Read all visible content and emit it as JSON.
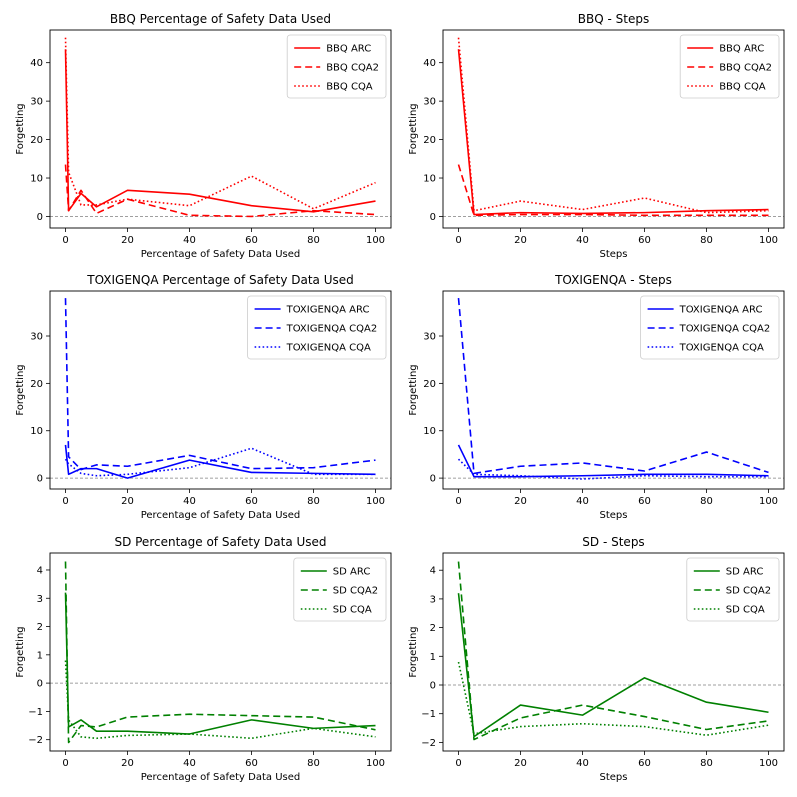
{
  "chart_data": [
    {
      "type": "line",
      "title": "BBQ Percentage of Safety Data Used",
      "xlabel": "Percentage of Safety Data Used",
      "ylabel": "Forgetting",
      "xlim": [
        -5,
        105
      ],
      "ylim": [
        -3,
        48.5
      ],
      "xticks": [
        0,
        20,
        40,
        60,
        80,
        100
      ],
      "yticks": [
        0,
        10,
        20,
        30,
        40
      ],
      "color": "#ff0000",
      "legend_position": "top-right",
      "series": [
        {
          "name": "BBQ ARC",
          "style": "solid",
          "x": [
            0,
            1,
            5,
            10,
            20,
            40,
            60,
            80,
            100
          ],
          "y": [
            43.5,
            1.5,
            6.0,
            2.5,
            6.8,
            5.8,
            2.8,
            1.2,
            4.0
          ]
        },
        {
          "name": "BBQ CQA2",
          "style": "dashed",
          "x": [
            0,
            1,
            5,
            10,
            20,
            40,
            60,
            80,
            100
          ],
          "y": [
            13.5,
            1.5,
            6.8,
            0.8,
            4.5,
            0.3,
            0.0,
            1.5,
            0.5
          ]
        },
        {
          "name": "BBQ CQA",
          "style": "dotted",
          "x": [
            0,
            1,
            5,
            10,
            20,
            40,
            60,
            80,
            100
          ],
          "y": [
            46.5,
            11.5,
            3.0,
            3.0,
            4.5,
            2.8,
            10.5,
            2.0,
            8.8
          ]
        }
      ]
    },
    {
      "type": "line",
      "title": "BBQ - Steps",
      "xlabel": "Steps",
      "ylabel": "Forgetting",
      "xlim": [
        -5,
        105
      ],
      "ylim": [
        -3,
        48.5
      ],
      "xticks": [
        0,
        20,
        40,
        60,
        80,
        100
      ],
      "yticks": [
        0,
        10,
        20,
        30,
        40
      ],
      "color": "#ff0000",
      "legend_position": "top-right",
      "series": [
        {
          "name": "BBQ ARC",
          "style": "solid",
          "x": [
            0,
            5,
            20,
            40,
            60,
            80,
            100
          ],
          "y": [
            43.5,
            0.5,
            1.0,
            0.8,
            1.0,
            1.5,
            1.8
          ]
        },
        {
          "name": "BBQ CQA2",
          "style": "dashed",
          "x": [
            0,
            5,
            20,
            40,
            60,
            80,
            100
          ],
          "y": [
            13.5,
            0.3,
            0.5,
            0.5,
            0.3,
            0.3,
            0.3
          ]
        },
        {
          "name": "BBQ CQA",
          "style": "dotted",
          "x": [
            0,
            5,
            20,
            40,
            60,
            80,
            100
          ],
          "y": [
            46.5,
            1.5,
            4.0,
            1.8,
            4.8,
            1.0,
            1.5
          ]
        }
      ]
    },
    {
      "type": "line",
      "title": "TOXIGENQA Percentage of Safety Data Used",
      "xlabel": "Percentage of Safety Data Used",
      "ylabel": "Forgetting",
      "xlim": [
        -5,
        105
      ],
      "ylim": [
        -2.3,
        39.5
      ],
      "xticks": [
        0,
        20,
        40,
        60,
        80,
        100
      ],
      "yticks": [
        0,
        10,
        20,
        30
      ],
      "color": "#0000ff",
      "legend_position": "top-right",
      "series": [
        {
          "name": "TOXIGENQA ARC",
          "style": "solid",
          "x": [
            0,
            1,
            5,
            10,
            20,
            40,
            60,
            80,
            100
          ],
          "y": [
            7.0,
            0.8,
            2.0,
            2.0,
            0.0,
            3.8,
            1.2,
            1.0,
            0.8
          ]
        },
        {
          "name": "TOXIGENQA CQA2",
          "style": "dashed",
          "x": [
            0,
            1,
            5,
            10,
            20,
            40,
            60,
            80,
            100
          ],
          "y": [
            38.0,
            4.5,
            1.8,
            2.8,
            2.5,
            4.8,
            2.0,
            2.2,
            3.8
          ]
        },
        {
          "name": "TOXIGENQA CQA",
          "style": "dotted",
          "x": [
            0,
            1,
            5,
            10,
            20,
            40,
            60,
            80,
            100
          ],
          "y": [
            4.0,
            3.0,
            1.0,
            0.5,
            0.8,
            2.2,
            6.3,
            0.8,
            0.8
          ]
        }
      ]
    },
    {
      "type": "line",
      "title": "TOXIGENQA - Steps",
      "xlabel": "Steps",
      "ylabel": "Forgetting",
      "xlim": [
        -5,
        105
      ],
      "ylim": [
        -2.3,
        39.5
      ],
      "xticks": [
        0,
        20,
        40,
        60,
        80,
        100
      ],
      "yticks": [
        0,
        10,
        20,
        30
      ],
      "color": "#0000ff",
      "legend_position": "top-right",
      "series": [
        {
          "name": "TOXIGENQA ARC",
          "style": "solid",
          "x": [
            0,
            5,
            20,
            40,
            60,
            80,
            100
          ],
          "y": [
            7.0,
            0.3,
            0.3,
            0.5,
            0.8,
            0.8,
            0.5
          ]
        },
        {
          "name": "TOXIGENQA CQA2",
          "style": "dashed",
          "x": [
            0,
            5,
            20,
            40,
            60,
            80,
            100
          ],
          "y": [
            38.0,
            1.0,
            2.5,
            3.2,
            1.5,
            5.5,
            1.2
          ]
        },
        {
          "name": "TOXIGENQA CQA",
          "style": "dotted",
          "x": [
            0,
            5,
            20,
            40,
            60,
            80,
            100
          ],
          "y": [
            4.0,
            0.8,
            0.5,
            -0.2,
            0.5,
            0.3,
            0.3
          ]
        }
      ]
    },
    {
      "type": "line",
      "title": "SD Percentage of Safety Data Used",
      "xlabel": "Percentage of Safety Data Used",
      "ylabel": "Forgetting",
      "xlim": [
        -5,
        105
      ],
      "ylim": [
        -2.4,
        4.6
      ],
      "xticks": [
        0,
        20,
        40,
        60,
        80,
        100
      ],
      "yticks": [
        -2,
        -1,
        0,
        1,
        2,
        3,
        4
      ],
      "color": "#008000",
      "legend_position": "top-right",
      "series": [
        {
          "name": "SD ARC",
          "style": "solid",
          "x": [
            0,
            1,
            5,
            10,
            20,
            40,
            60,
            80,
            100
          ],
          "y": [
            3.2,
            -1.55,
            -1.3,
            -1.7,
            -1.7,
            -1.8,
            -1.3,
            -1.6,
            -1.5
          ]
        },
        {
          "name": "SD CQA2",
          "style": "dashed",
          "x": [
            0,
            1,
            5,
            10,
            20,
            40,
            60,
            80,
            100
          ],
          "y": [
            4.3,
            -2.1,
            -1.5,
            -1.55,
            -1.2,
            -1.1,
            -1.15,
            -1.2,
            -1.65
          ]
        },
        {
          "name": "SD CQA",
          "style": "dotted",
          "x": [
            0,
            1,
            5,
            10,
            20,
            40,
            60,
            80,
            100
          ],
          "y": [
            0.8,
            -1.3,
            -1.9,
            -1.95,
            -1.85,
            -1.8,
            -1.95,
            -1.6,
            -1.9
          ]
        }
      ]
    },
    {
      "type": "line",
      "title": "SD - Steps",
      "xlabel": "Steps",
      "ylabel": "Forgetting",
      "xlim": [
        -5,
        105
      ],
      "ylim": [
        -2.3,
        4.6
      ],
      "xticks": [
        0,
        20,
        40,
        60,
        80,
        100
      ],
      "yticks": [
        -2,
        -1,
        0,
        1,
        2,
        3,
        4
      ],
      "color": "#008000",
      "legend_position": "top-right",
      "series": [
        {
          "name": "SD ARC",
          "style": "solid",
          "x": [
            0,
            5,
            20,
            40,
            60,
            80,
            100
          ],
          "y": [
            3.2,
            -1.8,
            -0.7,
            -1.05,
            0.25,
            -0.6,
            -0.95
          ]
        },
        {
          "name": "SD CQA2",
          "style": "dashed",
          "x": [
            0,
            5,
            20,
            40,
            60,
            80,
            100
          ],
          "y": [
            4.3,
            -1.9,
            -1.15,
            -0.7,
            -1.1,
            -1.55,
            -1.25
          ]
        },
        {
          "name": "SD CQA",
          "style": "dotted",
          "x": [
            0,
            5,
            20,
            40,
            60,
            80,
            100
          ],
          "y": [
            0.8,
            -1.7,
            -1.45,
            -1.35,
            -1.45,
            -1.75,
            -1.4
          ]
        }
      ]
    }
  ]
}
